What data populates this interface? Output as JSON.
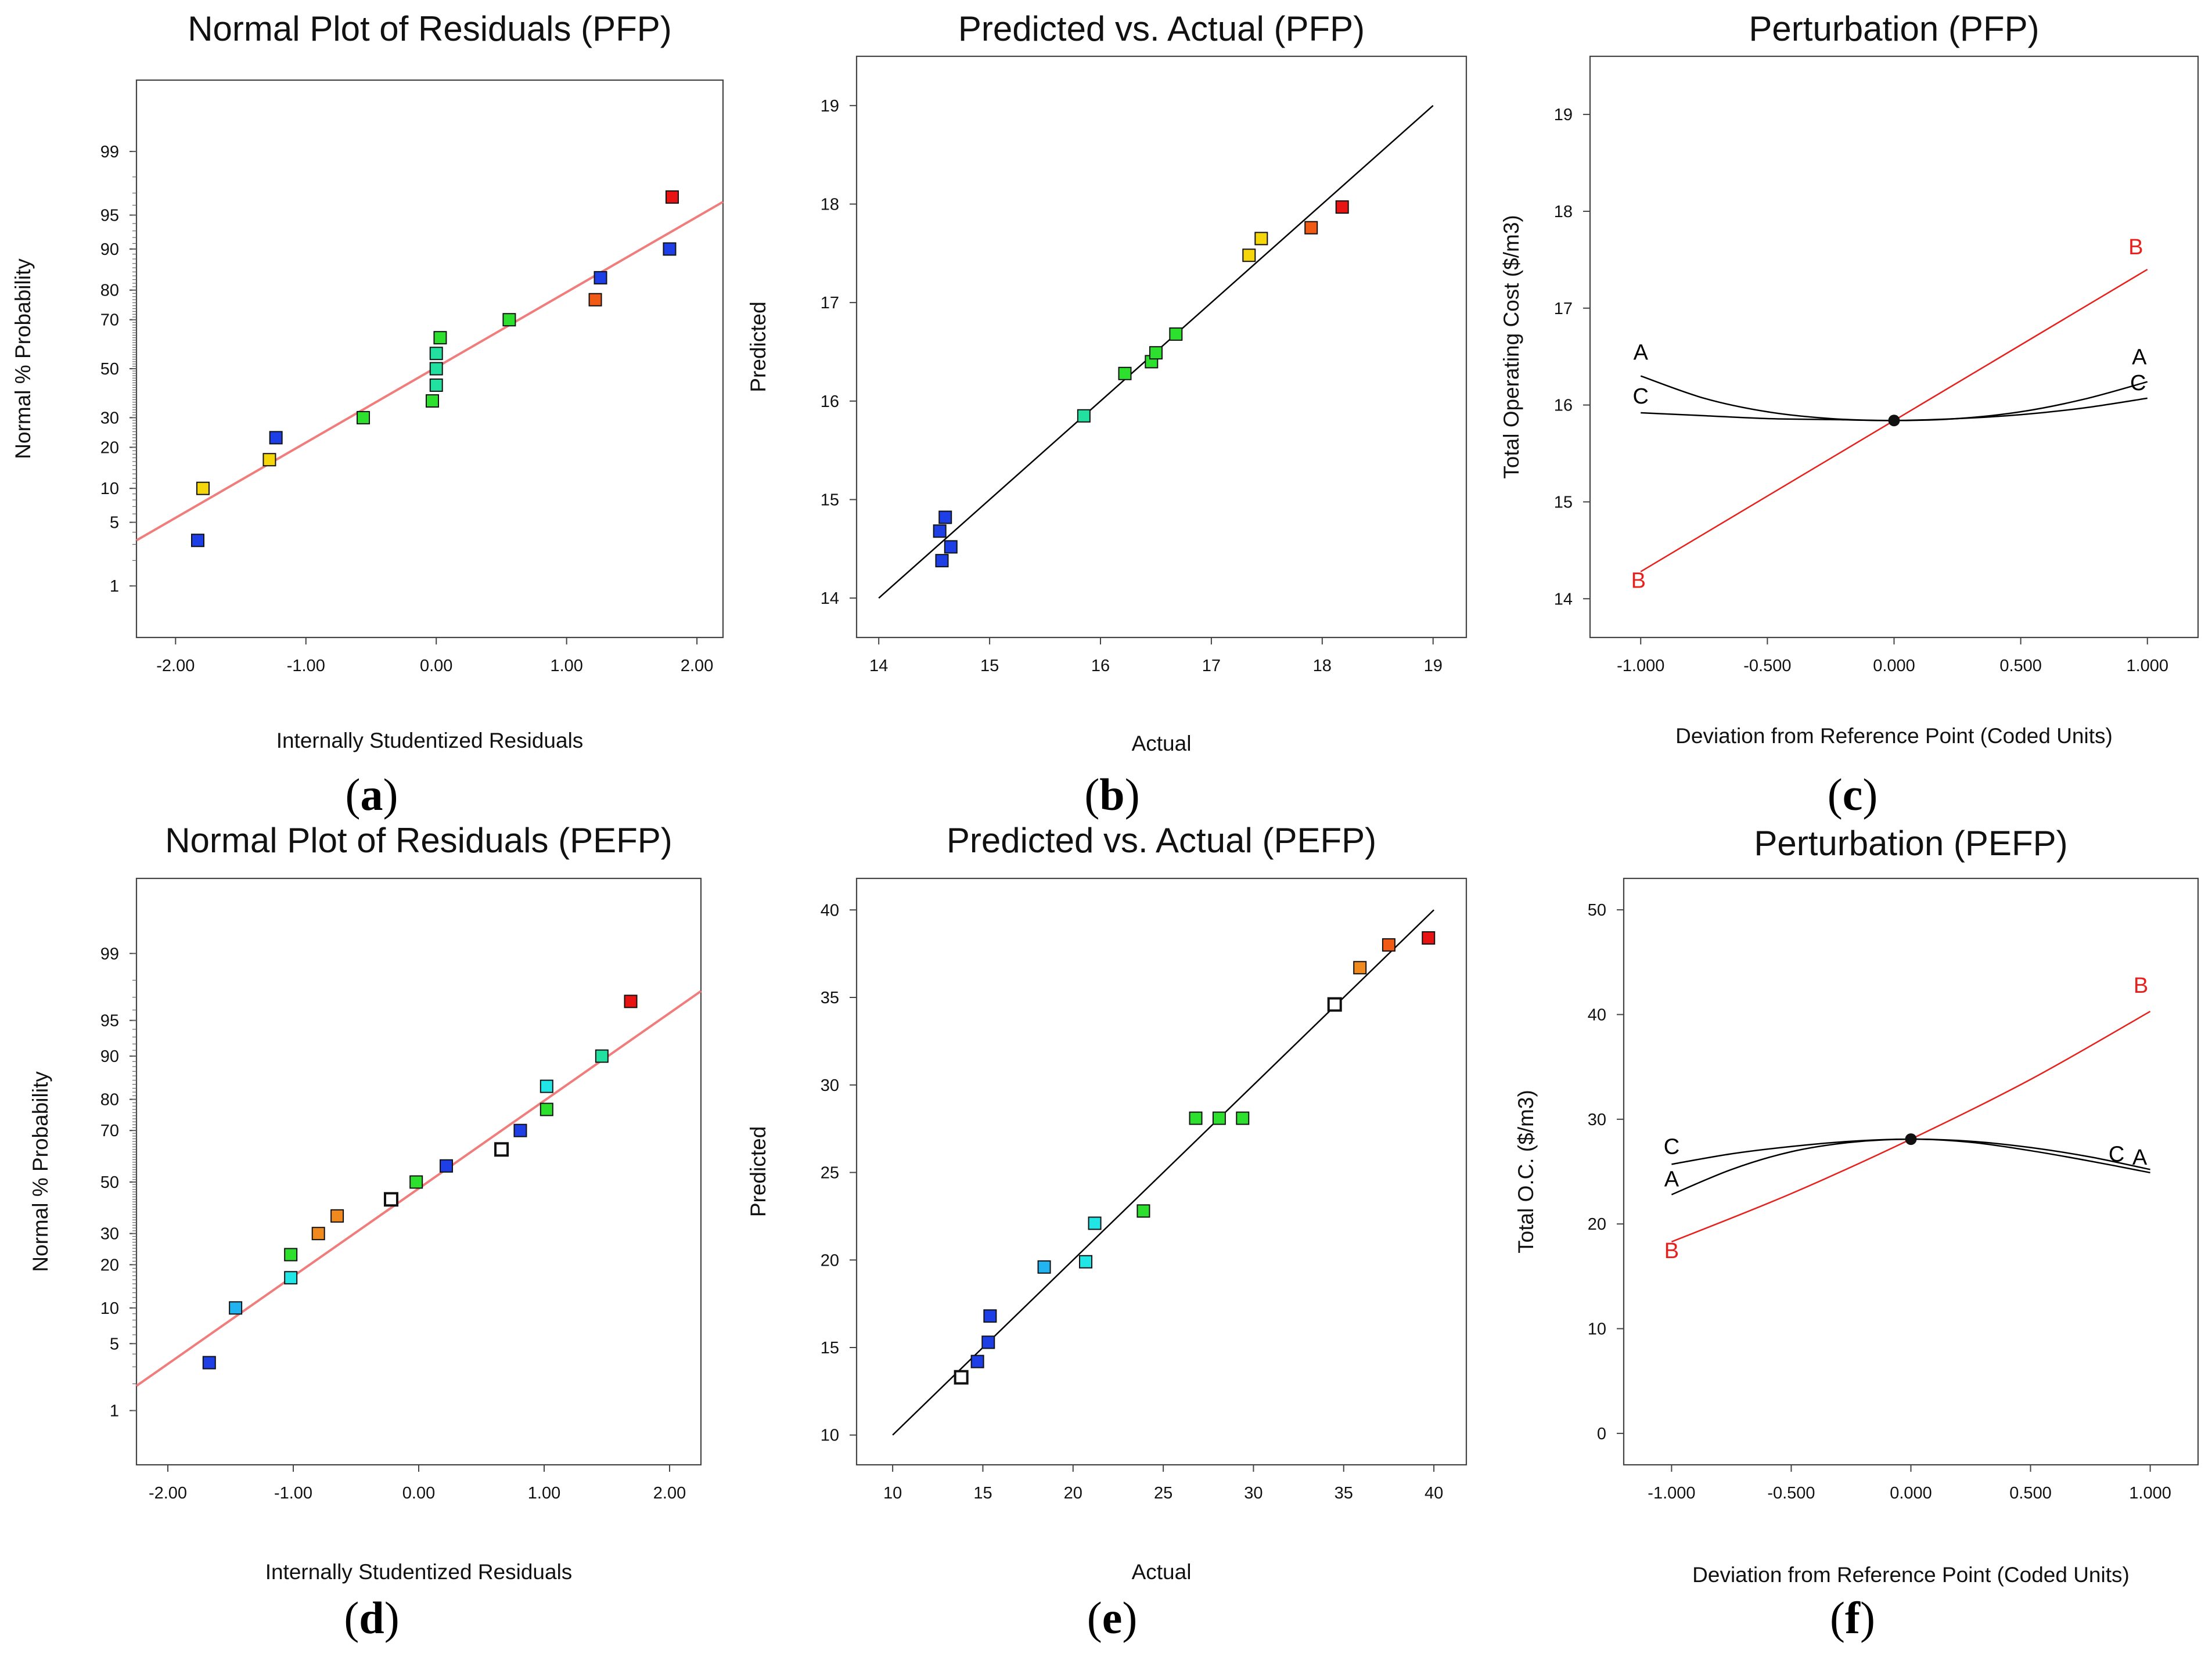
{
  "colors": {
    "fit_line_normal": "#f07c7c",
    "fit_line_parity": "#000000",
    "curve_factor_b": "#e8201c",
    "curve_factor_ac": "#000000",
    "point_blue": "#1e3ee6",
    "point_green": "#2ee02e",
    "point_teal": "#22e0a0",
    "point_cyan": "#22e6e6",
    "point_skyblue": "#22b4f0",
    "point_yellow": "#f5d60a",
    "point_orange": "#f08a1e",
    "point_redorange": "#f05a14",
    "point_red": "#e81414",
    "point_hollow": "#ffffff"
  },
  "chart_data": [
    {
      "panel_label": "(a)",
      "type": "scatter",
      "title": "Normal Plot of Residuals (PFP)",
      "xlabel": "Internally Studentized Residuals",
      "ylabel": "Normal % Probability",
      "y_scale": "normal probability",
      "xlim": [
        -2.3,
        2.2
      ],
      "ylim": [
        0.2,
        99.9
      ],
      "x_ticks": [
        -2,
        -1,
        0,
        1,
        2
      ],
      "x_tick_labels": [
        "-2.00",
        "-1.00",
        "0.00",
        "1.00",
        "2.00"
      ],
      "y_ticks": [
        1,
        5,
        10,
        20,
        30,
        50,
        70,
        80,
        90,
        95,
        99
      ],
      "y_tick_labels": [
        "1",
        "5",
        "10",
        "20",
        "30",
        "50",
        "70",
        "80",
        "90",
        "95",
        "99"
      ],
      "reference_line": {
        "x": [
          -2.3,
          2.2
        ],
        "y": [
          3.3,
          96.3
        ]
      },
      "points": [
        {
          "x": -1.83,
          "y": 3.3,
          "color": "blue"
        },
        {
          "x": -1.79,
          "y": 10,
          "color": "yellow"
        },
        {
          "x": -1.28,
          "y": 16.5,
          "color": "yellow"
        },
        {
          "x": -1.23,
          "y": 23,
          "color": "blue"
        },
        {
          "x": -0.56,
          "y": 30,
          "color": "green"
        },
        {
          "x": -0.03,
          "y": 36.5,
          "color": "green"
        },
        {
          "x": 0.0,
          "y": 43,
          "color": "teal"
        },
        {
          "x": 0.0,
          "y": 50,
          "color": "teal"
        },
        {
          "x": 0.0,
          "y": 56.5,
          "color": "teal"
        },
        {
          "x": 0.03,
          "y": 63,
          "color": "green"
        },
        {
          "x": 0.56,
          "y": 70,
          "color": "green"
        },
        {
          "x": 1.22,
          "y": 77,
          "color": "redorange"
        },
        {
          "x": 1.26,
          "y": 83.5,
          "color": "blue"
        },
        {
          "x": 1.79,
          "y": 90,
          "color": "blue"
        },
        {
          "x": 1.81,
          "y": 96.7,
          "color": "red"
        }
      ]
    },
    {
      "panel_label": "(b)",
      "type": "scatter",
      "title": "Predicted vs. Actual (PFP)",
      "xlabel": "Actual",
      "ylabel": "Predicted",
      "xlim": [
        13.8,
        19.3
      ],
      "ylim": [
        13.6,
        19.5
      ],
      "x_ticks": [
        14,
        15,
        16,
        17,
        18,
        19
      ],
      "x_tick_labels": [
        "14",
        "15",
        "16",
        "17",
        "18",
        "19"
      ],
      "y_ticks": [
        14,
        15,
        16,
        17,
        18,
        19
      ],
      "y_tick_labels": [
        "14",
        "15",
        "16",
        "17",
        "18",
        "19"
      ],
      "reference_line": {
        "x": [
          14,
          19
        ],
        "y": [
          14,
          19
        ]
      },
      "points": [
        {
          "x": 14.55,
          "y": 14.68,
          "color": "blue"
        },
        {
          "x": 14.6,
          "y": 14.82,
          "color": "blue"
        },
        {
          "x": 14.57,
          "y": 14.38,
          "color": "blue"
        },
        {
          "x": 14.65,
          "y": 14.52,
          "color": "blue"
        },
        {
          "x": 15.85,
          "y": 15.85,
          "color": "teal"
        },
        {
          "x": 16.22,
          "y": 16.28,
          "color": "green"
        },
        {
          "x": 16.46,
          "y": 16.4,
          "color": "green"
        },
        {
          "x": 16.5,
          "y": 16.49,
          "color": "green"
        },
        {
          "x": 16.68,
          "y": 16.68,
          "color": "green"
        },
        {
          "x": 17.34,
          "y": 17.48,
          "color": "yellow"
        },
        {
          "x": 17.45,
          "y": 17.65,
          "color": "yellow"
        },
        {
          "x": 17.9,
          "y": 17.76,
          "color": "redorange"
        },
        {
          "x": 18.18,
          "y": 17.97,
          "color": "red"
        }
      ]
    },
    {
      "panel_label": "(c)",
      "type": "line",
      "title": "Perturbation (PFP)",
      "xlabel": "Deviation from Reference Point (Coded Units)",
      "ylabel": "Total Operating Cost ($/m3)",
      "xlim": [
        -1.2,
        1.2
      ],
      "ylim": [
        13.6,
        19.6
      ],
      "x_ticks": [
        -1,
        -0.5,
        0,
        0.5,
        1
      ],
      "x_tick_labels": [
        "-1.000",
        "-0.500",
        "0.000",
        "0.500",
        "1.000"
      ],
      "y_ticks": [
        14,
        15,
        16,
        17,
        18,
        19
      ],
      "y_tick_labels": [
        "14",
        "15",
        "16",
        "17",
        "18",
        "19"
      ],
      "reference_point": {
        "x": 0,
        "y": 15.84
      },
      "series": [
        {
          "name": "A",
          "x": [
            -1,
            -0.75,
            -0.5,
            -0.25,
            0,
            0.25,
            0.5,
            0.75,
            1
          ],
          "y": [
            16.3,
            16.07,
            15.93,
            15.86,
            15.84,
            15.86,
            15.93,
            16.06,
            16.24
          ]
        },
        {
          "name": "B",
          "x": [
            -1,
            0,
            1
          ],
          "y": [
            14.28,
            15.84,
            17.4
          ]
        },
        {
          "name": "C",
          "x": [
            -1,
            -0.75,
            -0.5,
            -0.25,
            0,
            0.25,
            0.5,
            0.75,
            1
          ],
          "y": [
            15.92,
            15.89,
            15.86,
            15.85,
            15.84,
            15.86,
            15.9,
            15.97,
            16.07
          ]
        }
      ],
      "series_labels": [
        {
          "text": "A",
          "series": "A",
          "at": "start"
        },
        {
          "text": "A",
          "series": "A",
          "at": "end"
        },
        {
          "text": "B",
          "series": "B",
          "at": "start"
        },
        {
          "text": "B",
          "series": "B",
          "at": "end"
        },
        {
          "text": "C",
          "series": "C",
          "at": "start"
        },
        {
          "text": "C",
          "series": "C",
          "at": "end"
        }
      ]
    },
    {
      "panel_label": "(d)",
      "type": "scatter",
      "title": "Normal Plot of Residuals (PEFP)",
      "xlabel": "Internally Studentized Residuals",
      "ylabel": "Normal % Probability",
      "y_scale": "normal probability",
      "xlim": [
        -2.25,
        2.25
      ],
      "ylim": [
        0.2,
        99.9
      ],
      "x_ticks": [
        -2,
        -1,
        0,
        1,
        2
      ],
      "x_tick_labels": [
        "-2.00",
        "-1.00",
        "0.00",
        "1.00",
        "2.00"
      ],
      "y_ticks": [
        1,
        5,
        10,
        20,
        30,
        50,
        70,
        80,
        90,
        95,
        99
      ],
      "y_tick_labels": [
        "1",
        "5",
        "10",
        "20",
        "30",
        "50",
        "70",
        "80",
        "90",
        "95",
        "99"
      ],
      "reference_line": {
        "x": [
          -2.25,
          2.25
        ],
        "y": [
          1.9,
          97.4
        ]
      },
      "points": [
        {
          "x": -1.67,
          "y": 3.3,
          "color": "blue"
        },
        {
          "x": -1.46,
          "y": 10,
          "color": "skyblue"
        },
        {
          "x": -1.02,
          "y": 16.5,
          "color": "cyan"
        },
        {
          "x": -1.02,
          "y": 23,
          "color": "green"
        },
        {
          "x": -0.8,
          "y": 30,
          "color": "orange"
        },
        {
          "x": -0.65,
          "y": 36.5,
          "color": "orange"
        },
        {
          "x": -0.22,
          "y": 43,
          "color": "hollow"
        },
        {
          "x": -0.02,
          "y": 50,
          "color": "green"
        },
        {
          "x": 0.22,
          "y": 56.5,
          "color": "blue"
        },
        {
          "x": 0.66,
          "y": 63,
          "color": "hollow"
        },
        {
          "x": 0.81,
          "y": 70,
          "color": "blue"
        },
        {
          "x": 1.02,
          "y": 77,
          "color": "green"
        },
        {
          "x": 1.02,
          "y": 83.5,
          "color": "cyan"
        },
        {
          "x": 1.46,
          "y": 90,
          "color": "teal"
        },
        {
          "x": 1.69,
          "y": 96.7,
          "color": "red"
        }
      ]
    },
    {
      "panel_label": "(e)",
      "type": "scatter",
      "title": "Predicted vs. Actual (PEFP)",
      "xlabel": "Actual",
      "ylabel": "Predicted",
      "xlim": [
        8,
        41.8
      ],
      "ylim": [
        8.3,
        41.8
      ],
      "x_ticks": [
        10,
        15,
        20,
        25,
        30,
        35,
        40
      ],
      "x_tick_labels": [
        "10",
        "15",
        "20",
        "25",
        "30",
        "35",
        "40"
      ],
      "y_ticks": [
        10,
        15,
        20,
        25,
        30,
        35,
        40
      ],
      "y_tick_labels": [
        "10",
        "15",
        "20",
        "25",
        "30",
        "35",
        "40"
      ],
      "reference_line": {
        "x": [
          10,
          40
        ],
        "y": [
          10,
          40
        ]
      },
      "points": [
        {
          "x": 13.8,
          "y": 13.3,
          "color": "hollow"
        },
        {
          "x": 14.7,
          "y": 14.2,
          "color": "blue"
        },
        {
          "x": 15.3,
          "y": 15.3,
          "color": "blue"
        },
        {
          "x": 15.4,
          "y": 16.8,
          "color": "blue"
        },
        {
          "x": 18.4,
          "y": 19.6,
          "color": "skyblue"
        },
        {
          "x": 20.7,
          "y": 19.9,
          "color": "cyan"
        },
        {
          "x": 21.2,
          "y": 22.1,
          "color": "cyan"
        },
        {
          "x": 23.9,
          "y": 22.8,
          "color": "green"
        },
        {
          "x": 26.8,
          "y": 28.1,
          "color": "green"
        },
        {
          "x": 28.1,
          "y": 28.1,
          "color": "green"
        },
        {
          "x": 29.4,
          "y": 28.1,
          "color": "green"
        },
        {
          "x": 34.5,
          "y": 34.6,
          "color": "hollow"
        },
        {
          "x": 35.9,
          "y": 36.7,
          "color": "orange"
        },
        {
          "x": 37.5,
          "y": 38.0,
          "color": "redorange"
        },
        {
          "x": 39.7,
          "y": 38.4,
          "color": "red"
        }
      ]
    },
    {
      "panel_label": "(f)",
      "type": "line",
      "title": "Perturbation (PEFP)",
      "xlabel": "Deviation from Reference Point (Coded Units)",
      "ylabel": "Total O.C. ($/m3)",
      "xlim": [
        -1.2,
        1.2
      ],
      "ylim": [
        -3,
        53
      ],
      "x_ticks": [
        -1,
        -0.5,
        0,
        0.5,
        1
      ],
      "x_tick_labels": [
        "-1.000",
        "-0.500",
        "0.000",
        "0.500",
        "1.000"
      ],
      "y_ticks": [
        0,
        10,
        20,
        30,
        40,
        50
      ],
      "y_tick_labels": [
        "0",
        "10",
        "20",
        "30",
        "40",
        "50"
      ],
      "reference_point": {
        "x": 0,
        "y": 28.1
      },
      "series": [
        {
          "name": "A",
          "x": [
            -1,
            -0.75,
            -0.5,
            -0.25,
            0,
            0.25,
            0.5,
            0.75,
            1
          ],
          "y": [
            22.8,
            25.2,
            26.9,
            27.8,
            28.1,
            27.8,
            27.0,
            26.0,
            24.9
          ]
        },
        {
          "name": "B",
          "x": [
            -1,
            -0.5,
            0,
            0.5,
            1
          ],
          "y": [
            18.3,
            22.9,
            28.1,
            33.8,
            40.3
          ]
        },
        {
          "name": "C",
          "x": [
            -1,
            -0.75,
            -0.5,
            -0.25,
            0,
            0.25,
            0.5,
            0.75,
            1
          ],
          "y": [
            25.7,
            26.7,
            27.4,
            27.9,
            28.1,
            27.9,
            27.3,
            26.4,
            25.2
          ]
        }
      ],
      "series_labels": [
        {
          "text": "A",
          "series": "A",
          "at": "start"
        },
        {
          "text": "A",
          "series": "A",
          "at": "end"
        },
        {
          "text": "B",
          "series": "B",
          "at": "start"
        },
        {
          "text": "B",
          "series": "B",
          "at": "end"
        },
        {
          "text": "C",
          "series": "C",
          "at": "start"
        },
        {
          "text": "C",
          "series": "C",
          "at": "end"
        }
      ]
    }
  ]
}
